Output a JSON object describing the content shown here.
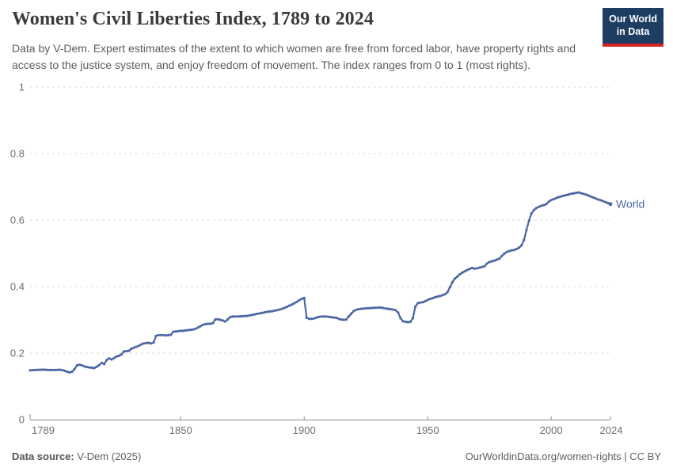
{
  "header": {
    "title": "Women's Civil Liberties Index, 1789 to 2024",
    "subtitle": "Data by V-Dem. Expert estimates of the extent to which women are free from forced labor, have property rights and access to the justice system, and enjoy freedom of movement. The index ranges from 0 to 1 (most rights).",
    "logo": {
      "line1": "Our World",
      "line2": "in Data",
      "bg_color": "#1d3d63",
      "accent_color": "#d62421"
    }
  },
  "chart_data": {
    "type": "line",
    "title": "Women's Civil Liberties Index, 1789 to 2024",
    "xlabel": "",
    "ylabel": "",
    "xlim": [
      1789,
      2024
    ],
    "ylim": [
      0,
      1
    ],
    "x_ticks": [
      1789,
      1850,
      1900,
      1950,
      2000,
      2024
    ],
    "y_ticks": [
      0,
      0.2,
      0.4,
      0.6,
      0.8,
      1
    ],
    "grid": "horizontal-dashed",
    "legend": "end-of-line-label",
    "colors": {
      "grid": "#dcdcdc",
      "axis": "#8f8f8f",
      "tick_label": "#6e6e6e"
    },
    "series": [
      {
        "name": "World",
        "color": "#4b66a2",
        "points": [
          [
            1789,
            0.148
          ],
          [
            1791,
            0.149
          ],
          [
            1793,
            0.15
          ],
          [
            1795,
            0.15
          ],
          [
            1797,
            0.149
          ],
          [
            1799,
            0.149
          ],
          [
            1801,
            0.15
          ],
          [
            1803,
            0.147
          ],
          [
            1804,
            0.144
          ],
          [
            1805,
            0.142
          ],
          [
            1806,
            0.144
          ],
          [
            1807,
            0.152
          ],
          [
            1808,
            0.163
          ],
          [
            1809,
            0.165
          ],
          [
            1810,
            0.163
          ],
          [
            1811,
            0.16
          ],
          [
            1812,
            0.158
          ],
          [
            1813,
            0.157
          ],
          [
            1814,
            0.156
          ],
          [
            1815,
            0.155
          ],
          [
            1816,
            0.159
          ],
          [
            1817,
            0.164
          ],
          [
            1818,
            0.171
          ],
          [
            1819,
            0.167
          ],
          [
            1820,
            0.179
          ],
          [
            1821,
            0.184
          ],
          [
            1822,
            0.181
          ],
          [
            1823,
            0.185
          ],
          [
            1824,
            0.19
          ],
          [
            1825,
            0.192
          ],
          [
            1826,
            0.196
          ],
          [
            1827,
            0.205
          ],
          [
            1828,
            0.206
          ],
          [
            1829,
            0.207
          ],
          [
            1830,
            0.213
          ],
          [
            1831,
            0.216
          ],
          [
            1832,
            0.219
          ],
          [
            1833,
            0.222
          ],
          [
            1834,
            0.226
          ],
          [
            1835,
            0.229
          ],
          [
            1836,
            0.23
          ],
          [
            1837,
            0.231
          ],
          [
            1838,
            0.229
          ],
          [
            1839,
            0.232
          ],
          [
            1840,
            0.252
          ],
          [
            1841,
            0.254
          ],
          [
            1842,
            0.254
          ],
          [
            1843,
            0.254
          ],
          [
            1844,
            0.253
          ],
          [
            1845,
            0.254
          ],
          [
            1846,
            0.255
          ],
          [
            1847,
            0.264
          ],
          [
            1848,
            0.265
          ],
          [
            1849,
            0.266
          ],
          [
            1850,
            0.267
          ],
          [
            1851,
            0.267
          ],
          [
            1852,
            0.268
          ],
          [
            1853,
            0.269
          ],
          [
            1854,
            0.27
          ],
          [
            1855,
            0.271
          ],
          [
            1856,
            0.273
          ],
          [
            1857,
            0.277
          ],
          [
            1858,
            0.281
          ],
          [
            1859,
            0.285
          ],
          [
            1860,
            0.287
          ],
          [
            1861,
            0.288
          ],
          [
            1862,
            0.288
          ],
          [
            1863,
            0.29
          ],
          [
            1864,
            0.301
          ],
          [
            1865,
            0.302
          ],
          [
            1866,
            0.3
          ],
          [
            1867,
            0.298
          ],
          [
            1868,
            0.295
          ],
          [
            1869,
            0.301
          ],
          [
            1870,
            0.308
          ],
          [
            1871,
            0.31
          ],
          [
            1873,
            0.31
          ],
          [
            1875,
            0.311
          ],
          [
            1877,
            0.312
          ],
          [
            1879,
            0.315
          ],
          [
            1881,
            0.318
          ],
          [
            1883,
            0.321
          ],
          [
            1885,
            0.324
          ],
          [
            1887,
            0.326
          ],
          [
            1889,
            0.329
          ],
          [
            1891,
            0.333
          ],
          [
            1893,
            0.339
          ],
          [
            1895,
            0.346
          ],
          [
            1896,
            0.35
          ],
          [
            1897,
            0.354
          ],
          [
            1898,
            0.359
          ],
          [
            1899,
            0.363
          ],
          [
            1900,
            0.366
          ],
          [
            1901,
            0.306
          ],
          [
            1902,
            0.303
          ],
          [
            1903,
            0.303
          ],
          [
            1904,
            0.304
          ],
          [
            1905,
            0.307
          ],
          [
            1906,
            0.309
          ],
          [
            1907,
            0.31
          ],
          [
            1909,
            0.31
          ],
          [
            1910,
            0.309
          ],
          [
            1912,
            0.307
          ],
          [
            1913,
            0.306
          ],
          [
            1914,
            0.303
          ],
          [
            1915,
            0.301
          ],
          [
            1916,
            0.3
          ],
          [
            1917,
            0.301
          ],
          [
            1918,
            0.31
          ],
          [
            1919,
            0.318
          ],
          [
            1920,
            0.326
          ],
          [
            1921,
            0.33
          ],
          [
            1922,
            0.332
          ],
          [
            1924,
            0.334
          ],
          [
            1926,
            0.335
          ],
          [
            1928,
            0.336
          ],
          [
            1930,
            0.337
          ],
          [
            1931,
            0.337
          ],
          [
            1933,
            0.334
          ],
          [
            1935,
            0.332
          ],
          [
            1936,
            0.331
          ],
          [
            1937,
            0.329
          ],
          [
            1938,
            0.322
          ],
          [
            1939,
            0.305
          ],
          [
            1940,
            0.296
          ],
          [
            1941,
            0.294
          ],
          [
            1942,
            0.293
          ],
          [
            1943,
            0.294
          ],
          [
            1944,
            0.305
          ],
          [
            1945,
            0.34
          ],
          [
            1946,
            0.35
          ],
          [
            1947,
            0.352
          ],
          [
            1948,
            0.353
          ],
          [
            1949,
            0.356
          ],
          [
            1950,
            0.36
          ],
          [
            1951,
            0.363
          ],
          [
            1952,
            0.365
          ],
          [
            1953,
            0.368
          ],
          [
            1954,
            0.37
          ],
          [
            1955,
            0.372
          ],
          [
            1956,
            0.374
          ],
          [
            1957,
            0.377
          ],
          [
            1958,
            0.383
          ],
          [
            1959,
            0.398
          ],
          [
            1960,
            0.413
          ],
          [
            1961,
            0.424
          ],
          [
            1962,
            0.43
          ],
          [
            1963,
            0.437
          ],
          [
            1964,
            0.442
          ],
          [
            1965,
            0.446
          ],
          [
            1966,
            0.45
          ],
          [
            1967,
            0.453
          ],
          [
            1968,
            0.456
          ],
          [
            1969,
            0.454
          ],
          [
            1970,
            0.455
          ],
          [
            1971,
            0.457
          ],
          [
            1972,
            0.459
          ],
          [
            1973,
            0.461
          ],
          [
            1974,
            0.469
          ],
          [
            1975,
            0.474
          ],
          [
            1976,
            0.476
          ],
          [
            1977,
            0.478
          ],
          [
            1978,
            0.481
          ],
          [
            1979,
            0.484
          ],
          [
            1980,
            0.492
          ],
          [
            1981,
            0.499
          ],
          [
            1982,
            0.504
          ],
          [
            1983,
            0.507
          ],
          [
            1984,
            0.509
          ],
          [
            1985,
            0.51
          ],
          [
            1986,
            0.513
          ],
          [
            1987,
            0.517
          ],
          [
            1988,
            0.524
          ],
          [
            1989,
            0.54
          ],
          [
            1990,
            0.57
          ],
          [
            1991,
            0.598
          ],
          [
            1992,
            0.62
          ],
          [
            1993,
            0.63
          ],
          [
            1994,
            0.636
          ],
          [
            1995,
            0.64
          ],
          [
            1996,
            0.643
          ],
          [
            1997,
            0.645
          ],
          [
            1998,
            0.648
          ],
          [
            1999,
            0.655
          ],
          [
            2000,
            0.66
          ],
          [
            2001,
            0.663
          ],
          [
            2002,
            0.666
          ],
          [
            2003,
            0.669
          ],
          [
            2004,
            0.671
          ],
          [
            2005,
            0.673
          ],
          [
            2006,
            0.675
          ],
          [
            2007,
            0.677
          ],
          [
            2008,
            0.679
          ],
          [
            2009,
            0.68
          ],
          [
            2010,
            0.682
          ],
          [
            2011,
            0.683
          ],
          [
            2012,
            0.681
          ],
          [
            2013,
            0.679
          ],
          [
            2014,
            0.677
          ],
          [
            2015,
            0.674
          ],
          [
            2016,
            0.671
          ],
          [
            2017,
            0.668
          ],
          [
            2018,
            0.665
          ],
          [
            2019,
            0.662
          ],
          [
            2020,
            0.66
          ],
          [
            2021,
            0.657
          ],
          [
            2022,
            0.654
          ],
          [
            2023,
            0.651
          ],
          [
            2024,
            0.648
          ]
        ]
      }
    ]
  },
  "footer": {
    "source_label": "Data source:",
    "source_value": "V-Dem (2025)",
    "credit": "OurWorldinData.org/women-rights | CC BY"
  }
}
